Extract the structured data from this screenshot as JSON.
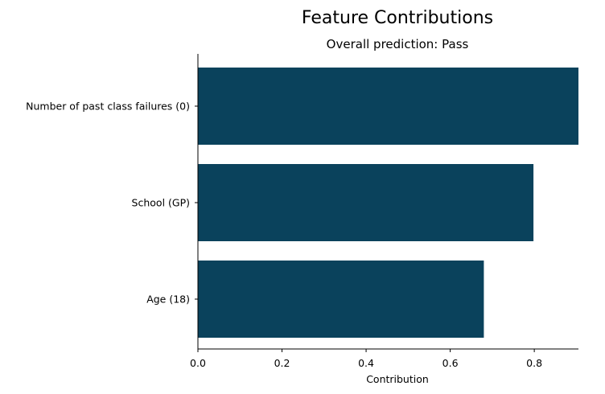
{
  "chart_data": {
    "type": "bar",
    "orientation": "horizontal",
    "title": "Feature Contributions",
    "subtitle": "Overall prediction: Pass",
    "xlabel": "Contribution",
    "ylabel": "",
    "categories": [
      "Number of past class failures (0)",
      "School (GP)",
      "Age (18)"
    ],
    "values": [
      0.905,
      0.798,
      0.68
    ],
    "xlim": [
      0,
      0.905
    ],
    "xticks": [
      0.0,
      0.2,
      0.4,
      0.6,
      0.8
    ],
    "xtick_labels": [
      "0.0",
      "0.2",
      "0.4",
      "0.6",
      "0.8"
    ],
    "bar_color": "#0a425c",
    "grid": false,
    "legend": "none"
  }
}
